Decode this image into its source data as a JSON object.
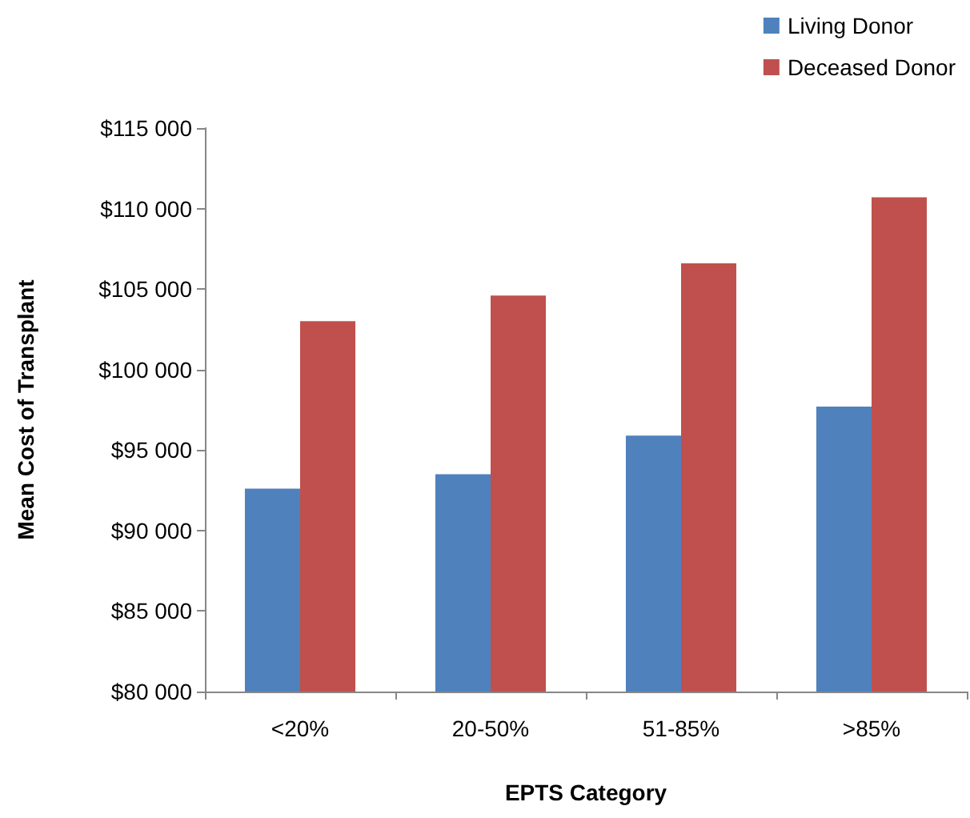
{
  "chart_data": {
    "type": "bar",
    "xlabel": "EPTS Category",
    "ylabel": "Mean Cost of Transplant",
    "categories": [
      "<20%",
      "20-50%",
      "51-85%",
      ">85%"
    ],
    "series": [
      {
        "name": "Living Donor",
        "color": "#4f81bd",
        "values": [
          92600,
          93500,
          95900,
          97700
        ]
      },
      {
        "name": "Deceased Donor",
        "color": "#c0504d",
        "values": [
          103000,
          104600,
          106600,
          110700
        ]
      }
    ],
    "ylim": [
      80000,
      115000
    ],
    "yticks": [
      {
        "value": 80000,
        "label": "$80 000"
      },
      {
        "value": 85000,
        "label": "$85 000"
      },
      {
        "value": 90000,
        "label": "$90 000"
      },
      {
        "value": 95000,
        "label": "$95 000"
      },
      {
        "value": 100000,
        "label": "$100 000"
      },
      {
        "value": 105000,
        "label": "$105 000"
      },
      {
        "value": 110000,
        "label": "$110 000"
      },
      {
        "value": 115000,
        "label": "$115 000"
      }
    ],
    "grid": false,
    "legend": "top right"
  }
}
